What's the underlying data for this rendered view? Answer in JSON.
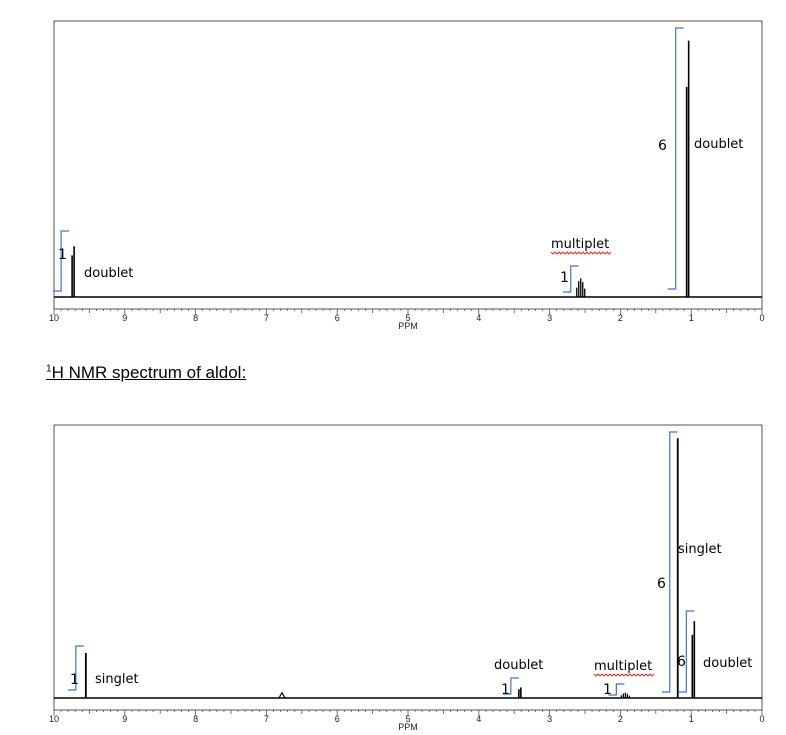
{
  "heading": {
    "superscript": "1",
    "text": "H NMR spectrum of aldol:"
  },
  "colors": {
    "bracket": "#4472C4",
    "trace": "#000000",
    "squiggle": "#E03030"
  },
  "chart_data": [
    {
      "type": "line",
      "xlabel": "PPM",
      "xlim": [
        10,
        0
      ],
      "x_reversed": true,
      "tick_labels": [
        "10",
        "9",
        "8",
        "7",
        "6",
        "5",
        "4",
        "3",
        "2",
        "1",
        "0"
      ],
      "grid": false,
      "peaks": [
        {
          "ppm": 9.73,
          "height": 0.19,
          "multiplicity": "doublet",
          "split": 0.02
        },
        {
          "ppm": 2.56,
          "height": 0.07,
          "multiplicity": "multiplet",
          "split": 0.02
        },
        {
          "ppm": 1.05,
          "height": 0.96,
          "multiplicity": "doublet",
          "split": 0.02
        }
      ],
      "annotations": [
        {
          "text": "doublet",
          "ppm": 9.73,
          "integration": "1"
        },
        {
          "text": "multiplet",
          "ppm": 2.56,
          "integration": "1",
          "spellcheck_underline": true
        },
        {
          "text": "doublet",
          "ppm": 1.05,
          "integration": "6"
        }
      ]
    },
    {
      "type": "line",
      "xlabel": "PPM",
      "xlim": [
        10,
        0
      ],
      "x_reversed": true,
      "tick_labels": [
        "10",
        "9",
        "8",
        "7",
        "6",
        "5",
        "4",
        "3",
        "2",
        "1",
        "0"
      ],
      "grid": false,
      "peaks": [
        {
          "ppm": 9.55,
          "height": 0.17,
          "multiplicity": "singlet",
          "split": 0
        },
        {
          "ppm": 6.78,
          "height": 0.02,
          "multiplicity": "singlet",
          "split": 0
        },
        {
          "ppm": 3.42,
          "height": 0.04,
          "multiplicity": "doublet",
          "split": 0.02
        },
        {
          "ppm": 1.93,
          "height": 0.02,
          "multiplicity": "multiplet",
          "split": 0.02
        },
        {
          "ppm": 1.19,
          "height": 0.98,
          "multiplicity": "singlet",
          "split": 0
        },
        {
          "ppm": 0.97,
          "height": 0.29,
          "multiplicity": "doublet",
          "split": 0.02
        }
      ],
      "annotations": [
        {
          "text": "singlet",
          "ppm": 9.55,
          "integration": "1"
        },
        {
          "text": "doublet",
          "ppm": 3.42,
          "integration": "1"
        },
        {
          "text": "multiplet",
          "ppm": 1.93,
          "integration": "1",
          "spellcheck_underline": true
        },
        {
          "text": "singlet",
          "ppm": 1.19,
          "integration": "6"
        },
        {
          "text": "doublet",
          "ppm": 0.97,
          "integration": "6"
        }
      ]
    }
  ]
}
